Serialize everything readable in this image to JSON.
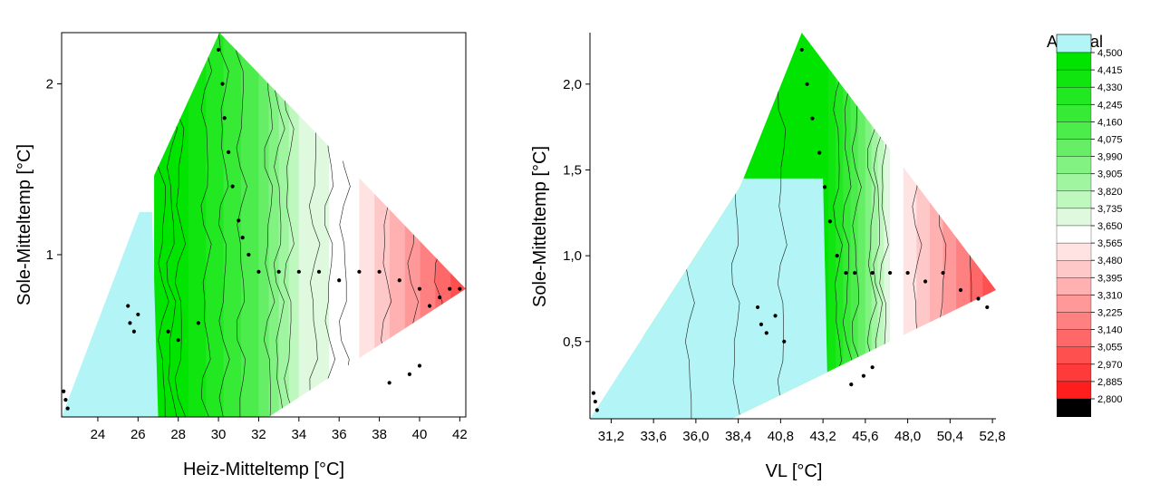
{
  "colors": {
    "cyan": "#b3f5f7",
    "white": "#ffffff",
    "black": "#000000",
    "contour": "#1a1a1a"
  },
  "colorscale": {
    "title": "AZ total",
    "levels": [
      "4,500",
      "4,415",
      "4,330",
      "4,245",
      "4,160",
      "4,075",
      "3,990",
      "3,905",
      "3,820",
      "3,735",
      "3,650",
      "3,565",
      "3,480",
      "3,395",
      "3,310",
      "3,225",
      "3,140",
      "3,055",
      "2,970",
      "2,885",
      "2,800"
    ],
    "band_colors": [
      "#00e400",
      "#10e510",
      "#22e822",
      "#36ea36",
      "#4cec4c",
      "#66ef66",
      "#82f282",
      "#a0f5a0",
      "#bff8bf",
      "#def9de",
      "#ffffff",
      "#ffe2e2",
      "#ffc8c8",
      "#ffb0b0",
      "#ff9898",
      "#ff8080",
      "#ff6868",
      "#ff5050",
      "#ff3a3a",
      "#ff1e1e"
    ],
    "above_color": "#b3f5f7",
    "below_color": "#000000"
  },
  "chart_data": [
    {
      "type": "heatmap",
      "subtype": "contour",
      "title": "",
      "xlabel": "Heiz-Mitteltemp [°C]",
      "ylabel": "Sole-Mitteltemp [°C]",
      "xlim": [
        22.2,
        42.3
      ],
      "ylim": [
        0.05,
        2.3
      ],
      "xticks": [
        24,
        26,
        28,
        30,
        32,
        34,
        36,
        38,
        40,
        42
      ],
      "xtick_labels": [
        "24",
        "26",
        "28",
        "30",
        "32",
        "34",
        "36",
        "38",
        "40",
        "42"
      ],
      "yticks": [
        1,
        2
      ],
      "ytick_labels": [
        "1",
        "2"
      ],
      "value_bands": [
        {
          "x_from": 26.8,
          "x_to": 28.5,
          "band": "4,500–4,415"
        },
        {
          "x_from": 28.5,
          "x_to": 32.0,
          "band": "4,415–4,075"
        },
        {
          "x_from": 32.0,
          "x_to": 34.0,
          "band": "4,075–3,735"
        },
        {
          "x_from": 34.0,
          "x_to": 37.0,
          "band": "3,735–3,565"
        },
        {
          "x_from": 37.0,
          "x_to": 42.3,
          "band": "3,565–3,055"
        }
      ],
      "region_above_max": "cyan (> 4,500) at x < 27, y < 1.2",
      "measured_points": [
        [
          22.3,
          0.2
        ],
        [
          22.4,
          0.15
        ],
        [
          22.5,
          0.1
        ],
        [
          25.5,
          0.7
        ],
        [
          25.6,
          0.6
        ],
        [
          25.8,
          0.55
        ],
        [
          26.0,
          0.65
        ],
        [
          27.5,
          0.55
        ],
        [
          28.0,
          0.5
        ],
        [
          29.0,
          0.6
        ],
        [
          30.0,
          2.2
        ],
        [
          30.2,
          2.0
        ],
        [
          30.3,
          1.8
        ],
        [
          30.5,
          1.6
        ],
        [
          30.7,
          1.4
        ],
        [
          31.0,
          1.2
        ],
        [
          31.2,
          1.1
        ],
        [
          31.5,
          1.0
        ],
        [
          32.0,
          0.9
        ],
        [
          33.0,
          0.9
        ],
        [
          34.0,
          0.9
        ],
        [
          35.0,
          0.9
        ],
        [
          36.0,
          0.85
        ],
        [
          37.0,
          0.9
        ],
        [
          38.0,
          0.9
        ],
        [
          39.0,
          0.85
        ],
        [
          40.0,
          0.8
        ],
        [
          40.5,
          0.7
        ],
        [
          41.0,
          0.75
        ],
        [
          41.5,
          0.8
        ],
        [
          42.0,
          0.8
        ],
        [
          39.5,
          0.3
        ],
        [
          40.0,
          0.35
        ],
        [
          38.5,
          0.25
        ]
      ]
    },
    {
      "type": "heatmap",
      "subtype": "contour",
      "title": "",
      "xlabel": "VL [°C]",
      "ylabel": "Sole-Mitteltemp [°C]",
      "xlim": [
        30.0,
        53.0
      ],
      "ylim": [
        0.05,
        2.3
      ],
      "xticks": [
        31.2,
        33.6,
        36.0,
        38.4,
        40.8,
        43.2,
        45.6,
        48.0,
        50.4,
        52.8
      ],
      "xtick_labels": [
        "31,2",
        "33,6",
        "36,0",
        "38,4",
        "40,8",
        "43,2",
        "45,6",
        "48,0",
        "50,4",
        "52,8"
      ],
      "yticks": [
        0.5,
        1.0,
        1.5,
        2.0
      ],
      "ytick_labels": [
        "0,5",
        "1,0",
        "1,5",
        "2,0"
      ],
      "value_bands": [
        {
          "x_from": 33.0,
          "x_to": 43.5,
          "band": "4,500–4,330"
        },
        {
          "x_from": 43.5,
          "x_to": 45.6,
          "band": "4,330–3,820"
        },
        {
          "x_from": 45.6,
          "x_to": 47.0,
          "band": "3,820–3,650"
        },
        {
          "x_from": 47.0,
          "x_to": 53.0,
          "band": "3,565–2,970"
        }
      ],
      "region_above_max": "cyan (> 4,500) at x < 43, y < 1.4",
      "measured_points": [
        [
          30.2,
          0.2
        ],
        [
          30.3,
          0.15
        ],
        [
          30.4,
          0.1
        ],
        [
          39.5,
          0.7
        ],
        [
          39.7,
          0.6
        ],
        [
          40.0,
          0.55
        ],
        [
          40.5,
          0.65
        ],
        [
          41.0,
          0.5
        ],
        [
          42.0,
          2.2
        ],
        [
          42.3,
          2.0
        ],
        [
          42.6,
          1.8
        ],
        [
          43.0,
          1.6
        ],
        [
          43.3,
          1.4
        ],
        [
          43.6,
          1.2
        ],
        [
          44.0,
          1.0
        ],
        [
          44.5,
          0.9
        ],
        [
          45.0,
          0.9
        ],
        [
          46.0,
          0.9
        ],
        [
          47.0,
          0.9
        ],
        [
          48.0,
          0.9
        ],
        [
          49.0,
          0.85
        ],
        [
          50.0,
          0.9
        ],
        [
          51.0,
          0.8
        ],
        [
          52.0,
          0.75
        ],
        [
          52.5,
          0.7
        ],
        [
          45.5,
          0.3
        ],
        [
          46.0,
          0.35
        ],
        [
          44.8,
          0.25
        ]
      ]
    }
  ]
}
